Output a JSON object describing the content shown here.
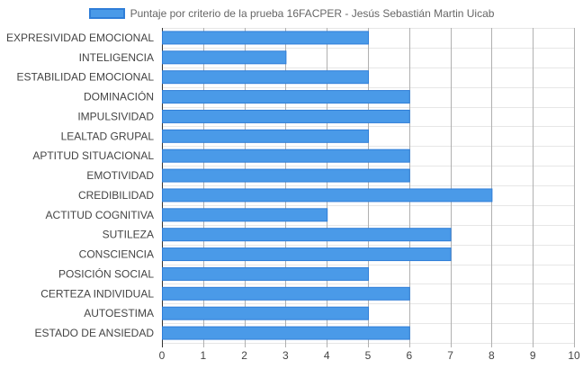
{
  "chart_data": {
    "type": "bar",
    "orientation": "horizontal",
    "categories": [
      "EXPRESIVIDAD EMOCIONAL",
      "INTELIGENCIA",
      "ESTABILIDAD EMOCIONAL",
      "DOMINACIÓN",
      "IMPULSIVIDAD",
      "LEALTAD GRUPAL",
      "APTITUD SITUACIONAL",
      "EMOTIVIDAD",
      "CREDIBILIDAD",
      "ACTITUD COGNITIVA",
      "SUTILEZA",
      "CONSCIENCIA",
      "POSICIÓN SOCIAL",
      "CERTEZA INDIVIDUAL",
      "AUTOESTIMA",
      "ESTADO DE ANSIEDAD"
    ],
    "series": [
      {
        "name": "Puntaje por criterio de la prueba 16FACPER - Jesús Sebastián Martin Uicab",
        "values": [
          5,
          3,
          5,
          6,
          6,
          5,
          6,
          6,
          8,
          4,
          7,
          7,
          5,
          6,
          5,
          6
        ],
        "color": "#4a9ae8",
        "border_color": "#2f7ed8"
      }
    ],
    "xlim": [
      0,
      10
    ],
    "xticks": [
      "0",
      "1",
      "2",
      "3",
      "4",
      "5",
      "6",
      "7",
      "8",
      "9",
      "10"
    ],
    "grid": true,
    "legend_position": "top-center",
    "title": "",
    "xlabel": "",
    "ylabel": ""
  }
}
